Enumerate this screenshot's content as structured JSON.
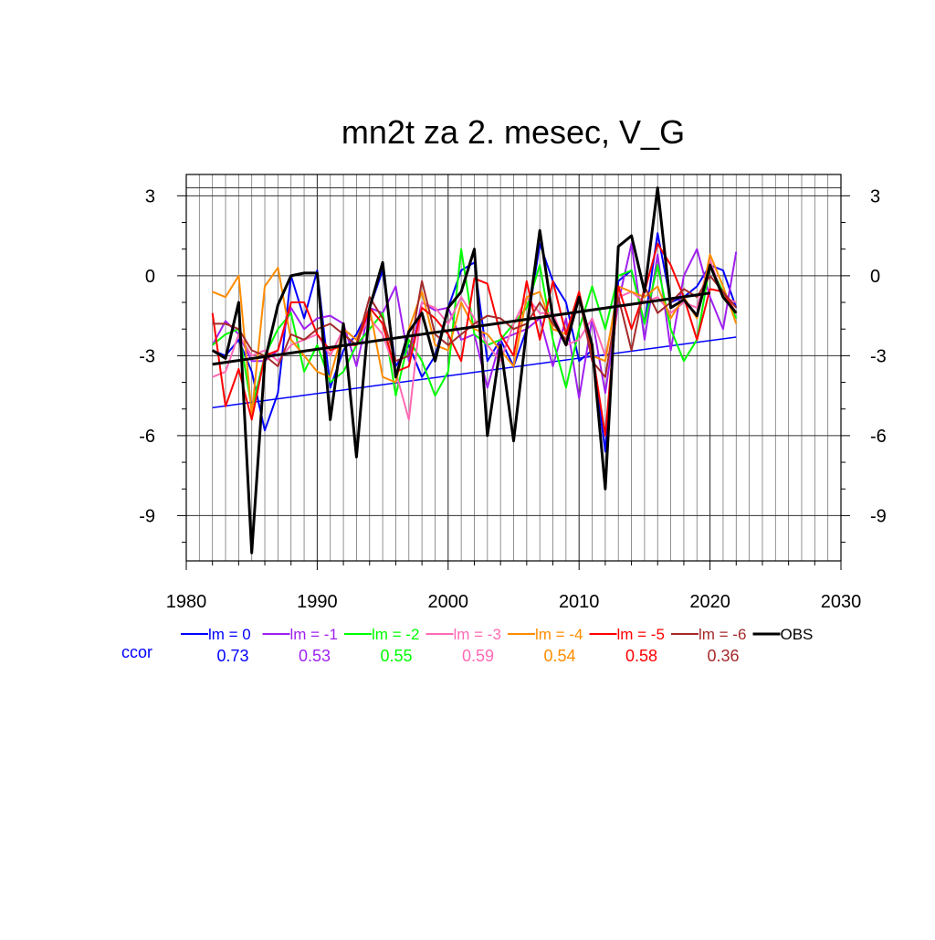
{
  "chart_data": {
    "type": "line",
    "title": "mn2t za 2. mesec, V_G",
    "xlabel": "",
    "ylabel": "",
    "xlim": [
      1980,
      2030
    ],
    "ylim": [
      -10.7,
      3.8
    ],
    "x_ticks": [
      1980,
      1990,
      2000,
      2010,
      2020,
      2030
    ],
    "x_tick_labels": [
      "1980",
      "1990",
      "2000",
      "2010",
      "2020",
      "2030"
    ],
    "y_ticks": [
      3,
      0,
      -3,
      -6,
      -9
    ],
    "y_tick_labels": [
      "3",
      "0",
      "-3",
      "-6",
      "-9"
    ],
    "grid": true,
    "legend_position": "bottom",
    "ccor_label": "ccor",
    "years": [
      1982,
      1983,
      1984,
      1985,
      1986,
      1987,
      1988,
      1989,
      1990,
      1991,
      1992,
      1993,
      1994,
      1995,
      1996,
      1997,
      1998,
      1999,
      2000,
      2001,
      2002,
      2003,
      2004,
      2005,
      2006,
      2007,
      2008,
      2009,
      2010,
      2011,
      2012,
      2013,
      2014,
      2015,
      2016,
      2017,
      2018,
      2019,
      2020,
      2021,
      2022
    ],
    "series": [
      {
        "name": "lm = 0",
        "ccor": "0.73",
        "color": "#0000ff",
        "values": [
          -2.8,
          -3.0,
          -2.4,
          -3.6,
          -5.8,
          -4.4,
          0.0,
          -1.6,
          0.2,
          -4.2,
          -2.8,
          -2.2,
          -1.2,
          0.2,
          -3.4,
          -2.6,
          -3.8,
          -3.0,
          -1.2,
          0.2,
          0.5,
          -3.2,
          -2.4,
          -3.4,
          -2.0,
          1.2,
          -0.2,
          -1.0,
          -3.2,
          -2.8,
          -6.6,
          -0.2,
          0.2,
          -1.8,
          1.6,
          -1.0,
          -0.8,
          -0.4,
          0.4,
          0.2,
          -1.2
        ],
        "trend": [
          [
            1982,
            -4.95
          ],
          [
            2022,
            -2.3
          ]
        ]
      },
      {
        "name": "lm = -1",
        "ccor": "0.53",
        "color": "#a020f0",
        "values": [
          -2.6,
          -1.7,
          -2.2,
          -3.2,
          -3.2,
          -2.8,
          -1.2,
          -2.0,
          -1.6,
          -1.5,
          -1.8,
          -3.4,
          -1.2,
          -1.4,
          -0.4,
          -3.2,
          -1.0,
          -1.3,
          -1.2,
          -2.4,
          -2.2,
          -4.2,
          -2.4,
          -2.2,
          -2.0,
          -1.6,
          -3.4,
          -1.6,
          -4.6,
          -1.6,
          -4.4,
          -1.0,
          1.2,
          -2.4,
          0.8,
          -2.8,
          0.0,
          1.0,
          -0.8,
          -2.0,
          0.9
        ]
      },
      {
        "name": "lm = -2",
        "ccor": "0.55",
        "color": "#00ff00",
        "values": [
          -2.6,
          -2.2,
          -2.0,
          -5.0,
          -3.0,
          -2.0,
          -1.4,
          -3.6,
          -2.6,
          -4.0,
          -3.6,
          -2.6,
          -2.0,
          -1.4,
          -4.5,
          -2.4,
          -3.2,
          -4.5,
          -3.6,
          1.0,
          -2.2,
          -2.6,
          -2.4,
          -1.8,
          -1.2,
          0.4,
          -2.4,
          -4.2,
          -2.0,
          -0.4,
          -2.0,
          0.0,
          0.2,
          -1.8,
          0.4,
          -2.0,
          -3.2,
          -2.4,
          0.4,
          -0.6,
          -1.6
        ]
      },
      {
        "name": "lm = -3",
        "ccor": "0.59",
        "color": "#ff69b4",
        "values": [
          -3.8,
          -3.6,
          -2.2,
          -3.0,
          -2.8,
          -3.2,
          -2.6,
          -2.4,
          -2.2,
          -3.0,
          -2.0,
          -2.4,
          -1.6,
          -2.2,
          -3.6,
          -5.4,
          -1.0,
          -1.2,
          -1.8,
          -0.8,
          -1.6,
          -2.6,
          -3.2,
          -1.8,
          -0.8,
          -1.4,
          -1.4,
          -2.6,
          -2.4,
          -1.6,
          -3.0,
          -0.8,
          -0.6,
          -1.0,
          -0.8,
          -1.4,
          -1.0,
          -1.2,
          0.6,
          -0.8,
          -1.0
        ]
      },
      {
        "name": "lm = -4",
        "ccor": "0.54",
        "color": "#ff8c00",
        "values": [
          -0.6,
          -0.8,
          0.0,
          -5.2,
          -0.4,
          0.3,
          -2.4,
          -3.0,
          -3.6,
          -3.8,
          -2.0,
          -2.4,
          -1.2,
          -3.8,
          -4.0,
          -2.0,
          -0.6,
          -2.6,
          -2.8,
          -1.0,
          -2.0,
          -2.2,
          -2.8,
          -3.4,
          -0.8,
          -0.6,
          -2.0,
          -2.2,
          -0.6,
          -3.0,
          -3.2,
          -0.4,
          -0.6,
          -0.8,
          -0.4,
          -1.6,
          -0.8,
          -1.6,
          0.8,
          -0.4,
          -1.8
        ]
      },
      {
        "name": "lm = -5",
        "ccor": "0.58",
        "color": "#ff0000",
        "values": [
          -1.4,
          -4.9,
          -3.5,
          -5.4,
          -3.0,
          -2.8,
          -1.0,
          -1.0,
          -2.2,
          -2.8,
          -2.6,
          -2.6,
          -1.2,
          -1.8,
          -3.6,
          -3.4,
          -1.2,
          -1.6,
          -2.2,
          -3.2,
          -0.1,
          -0.3,
          -2.2,
          -3.0,
          -0.2,
          -2.4,
          -0.2,
          -2.2,
          -0.6,
          -2.8,
          -6.0,
          -0.4,
          -2.0,
          -0.6,
          1.2,
          0.4,
          -0.8,
          -2.4,
          -0.5,
          -0.6,
          -1.4
        ]
      },
      {
        "name": "lm = -6",
        "ccor": "0.36",
        "color": "#a52a2a",
        "values": [
          -1.8,
          -1.8,
          -2.0,
          -2.8,
          -3.0,
          -3.4,
          -2.2,
          -2.4,
          -2.0,
          -1.8,
          -2.2,
          -2.6,
          -0.8,
          -1.6,
          -3.2,
          -3.0,
          -0.2,
          -2.2,
          -2.6,
          -2.2,
          -1.8,
          -1.5,
          -1.6,
          -2.0,
          -1.8,
          -1.0,
          -1.8,
          -2.4,
          -0.8,
          -3.2,
          -3.8,
          -0.8,
          -2.8,
          -0.4,
          -1.4,
          -1.0,
          -0.5,
          -0.8,
          0.0,
          -0.6,
          -1.2
        ]
      },
      {
        "name": "OBS",
        "ccor": "",
        "color": "#000000",
        "bold": true,
        "values": [
          -2.8,
          -3.1,
          -1.0,
          -10.4,
          -3.2,
          -1.1,
          0.0,
          0.1,
          0.1,
          -5.4,
          -1.8,
          -6.8,
          -1.2,
          0.5,
          -3.8,
          -2.1,
          -1.4,
          -3.2,
          -1.2,
          -0.6,
          1.0,
          -6.0,
          -2.6,
          -6.2,
          -2.0,
          1.7,
          -1.6,
          -2.6,
          -0.8,
          -2.6,
          -8.0,
          1.1,
          1.5,
          -0.6,
          3.3,
          -1.2,
          -0.9,
          -1.5,
          0.4,
          -0.8,
          -1.4
        ],
        "trend": [
          [
            1982,
            -3.32
          ],
          [
            2020,
            -0.65
          ]
        ]
      }
    ]
  }
}
